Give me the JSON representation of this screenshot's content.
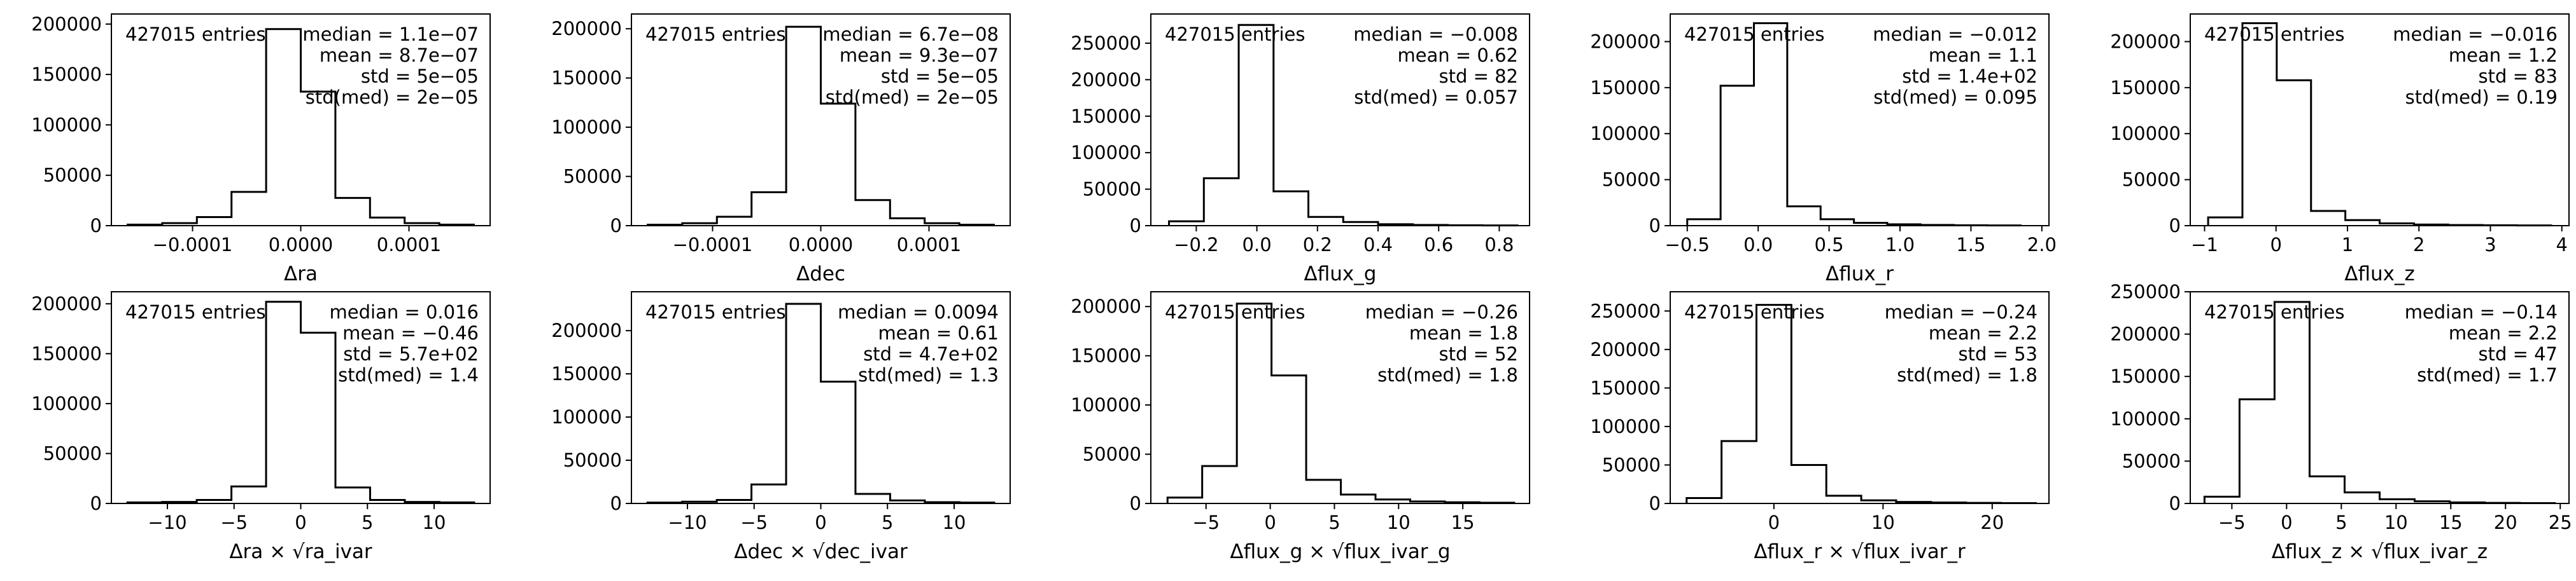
{
  "chart_data": [
    {
      "type": "histogram",
      "xlabel": "Δra",
      "entries_label": "427015 entries",
      "stats": [
        "median = 1.1e−07",
        "mean = 8.7e−07",
        "std = 5e−05",
        "std(med) = 2e−05"
      ],
      "xlim": [
        -0.000175,
        0.000175
      ],
      "ylim": [
        0,
        210000
      ],
      "xticks": [
        {
          "v": -0.0001,
          "label": "−0.0001"
        },
        {
          "v": 0.0,
          "label": "0.0000"
        },
        {
          "v": 0.0001,
          "label": "0.0001"
        }
      ],
      "yticks": [
        {
          "v": 0,
          "label": "0"
        },
        {
          "v": 50000,
          "label": "50000"
        },
        {
          "v": 100000,
          "label": "100000"
        },
        {
          "v": 150000,
          "label": "150000"
        },
        {
          "v": 200000,
          "label": "200000"
        }
      ],
      "bin_edges": [
        -0.00016,
        -0.000128,
        -9.6e-05,
        -6.4e-05,
        -3.2e-05,
        0.0,
        3.2e-05,
        6.4e-05,
        9.6e-05,
        0.000128,
        0.00016
      ],
      "counts": [
        1000,
        2500,
        8500,
        33500,
        195000,
        133000,
        27500,
        8000,
        2500,
        1000
      ]
    },
    {
      "type": "histogram",
      "xlabel": "Δdec",
      "entries_label": "427015 entries",
      "stats": [
        "median = 6.7e−08",
        "mean = 9.3e−07",
        "std = 5e−05",
        "std(med) = 2e−05"
      ],
      "xlim": [
        -0.000175,
        0.000175
      ],
      "ylim": [
        0,
        215000
      ],
      "xticks": [
        {
          "v": -0.0001,
          "label": "−0.0001"
        },
        {
          "v": 0.0,
          "label": "0.0000"
        },
        {
          "v": 0.0001,
          "label": "0.0001"
        }
      ],
      "yticks": [
        {
          "v": 0,
          "label": "0"
        },
        {
          "v": 50000,
          "label": "50000"
        },
        {
          "v": 100000,
          "label": "100000"
        },
        {
          "v": 150000,
          "label": "150000"
        },
        {
          "v": 200000,
          "label": "200000"
        }
      ],
      "bin_edges": [
        -0.00016,
        -0.000128,
        -9.6e-05,
        -6.4e-05,
        -3.2e-05,
        0.0,
        3.2e-05,
        6.4e-05,
        9.6e-05,
        0.000128,
        0.00016
      ],
      "counts": [
        1000,
        2500,
        9000,
        34000,
        202000,
        124000,
        26000,
        7500,
        2500,
        1000
      ]
    },
    {
      "type": "histogram",
      "xlabel": "Δflux_g",
      "entries_label": "427015 entries",
      "stats": [
        "median = −0.008",
        "mean = 0.62",
        "std = 82",
        "std(med) = 0.057"
      ],
      "xlim": [
        -0.35,
        0.9
      ],
      "ylim": [
        0,
        290000
      ],
      "xticks": [
        {
          "v": -0.2,
          "label": "−0.2"
        },
        {
          "v": 0.0,
          "label": "0.0"
        },
        {
          "v": 0.2,
          "label": "0.2"
        },
        {
          "v": 0.4,
          "label": "0.4"
        },
        {
          "v": 0.6,
          "label": "0.6"
        },
        {
          "v": 0.8,
          "label": "0.8"
        }
      ],
      "yticks": [
        {
          "v": 0,
          "label": "0"
        },
        {
          "v": 50000,
          "label": "50000"
        },
        {
          "v": 100000,
          "label": "100000"
        },
        {
          "v": 150000,
          "label": "150000"
        },
        {
          "v": 200000,
          "label": "200000"
        },
        {
          "v": 250000,
          "label": "250000"
        }
      ],
      "bin_edges": [
        -0.29,
        -0.175,
        -0.06,
        0.055,
        0.17,
        0.285,
        0.4,
        0.515,
        0.63,
        0.745,
        0.86
      ],
      "counts": [
        6000,
        65000,
        275000,
        47000,
        12000,
        5000,
        2000,
        1000,
        500,
        300
      ]
    },
    {
      "type": "histogram",
      "xlabel": "Δflux_r",
      "entries_label": "427015 entries",
      "stats": [
        "median = −0.012",
        "mean = 1.1",
        "std = 1.4e+02",
        "std(med) = 0.095"
      ],
      "xlim": [
        -0.62,
        2.05
      ],
      "ylim": [
        0,
        230000
      ],
      "xticks": [
        {
          "v": -0.5,
          "label": "−0.5"
        },
        {
          "v": 0.0,
          "label": "0.0"
        },
        {
          "v": 0.5,
          "label": "0.5"
        },
        {
          "v": 1.0,
          "label": "1.0"
        },
        {
          "v": 1.5,
          "label": "1.5"
        },
        {
          "v": 2.0,
          "label": "2.0"
        }
      ],
      "yticks": [
        {
          "v": 0,
          "label": "0"
        },
        {
          "v": 50000,
          "label": "50000"
        },
        {
          "v": 100000,
          "label": "100000"
        },
        {
          "v": 150000,
          "label": "150000"
        },
        {
          "v": 200000,
          "label": "200000"
        }
      ],
      "bin_edges": [
        -0.5,
        -0.265,
        -0.03,
        0.205,
        0.44,
        0.675,
        0.91,
        1.145,
        1.38,
        1.615,
        1.85
      ],
      "counts": [
        7000,
        152000,
        220000,
        21000,
        7000,
        3000,
        1500,
        800,
        400,
        300
      ]
    },
    {
      "type": "histogram",
      "xlabel": "Δflux_z",
      "entries_label": "427015 entries",
      "stats": [
        "median = −0.016",
        "mean = 1.2",
        "std = 83",
        "std(med) = 0.19"
      ],
      "xlim": [
        -1.2,
        4.1
      ],
      "ylim": [
        0,
        230000
      ],
      "xticks": [
        {
          "v": -1,
          "label": "−1"
        },
        {
          "v": 0,
          "label": "0"
        },
        {
          "v": 1,
          "label": "1"
        },
        {
          "v": 2,
          "label": "2"
        },
        {
          "v": 3,
          "label": "3"
        },
        {
          "v": 4,
          "label": "4"
        }
      ],
      "yticks": [
        {
          "v": 0,
          "label": "0"
        },
        {
          "v": 50000,
          "label": "50000"
        },
        {
          "v": 100000,
          "label": "100000"
        },
        {
          "v": 150000,
          "label": "150000"
        },
        {
          "v": 200000,
          "label": "200000"
        }
      ],
      "bin_edges": [
        -0.95,
        -0.47,
        0.01,
        0.49,
        0.97,
        1.45,
        1.93,
        2.41,
        2.89,
        3.37,
        3.85
      ],
      "counts": [
        9000,
        220000,
        158000,
        16000,
        6000,
        2500,
        1200,
        700,
        400,
        300
      ]
    },
    {
      "type": "histogram",
      "xlabel": "Δra × √ra_ivar",
      "entries_label": "427015 entries",
      "stats": [
        "median = 0.016",
        "mean = −0.46",
        "std = 5.7e+02",
        "std(med) = 1.4"
      ],
      "xlim": [
        -14.2,
        14.2
      ],
      "ylim": [
        0,
        212000
      ],
      "xticks": [
        {
          "v": -10,
          "label": "−10"
        },
        {
          "v": -5,
          "label": "−5"
        },
        {
          "v": 0,
          "label": "0"
        },
        {
          "v": 5,
          "label": "5"
        },
        {
          "v": 10,
          "label": "10"
        }
      ],
      "yticks": [
        {
          "v": 0,
          "label": "0"
        },
        {
          "v": 50000,
          "label": "50000"
        },
        {
          "v": 100000,
          "label": "100000"
        },
        {
          "v": 150000,
          "label": "150000"
        },
        {
          "v": 200000,
          "label": "200000"
        }
      ],
      "bin_edges": [
        -13,
        -10.4,
        -7.8,
        -5.2,
        -2.6,
        0,
        2.6,
        5.2,
        7.8,
        10.4,
        13
      ],
      "counts": [
        1000,
        1500,
        3500,
        17000,
        202000,
        171000,
        16000,
        3500,
        1500,
        1000
      ]
    },
    {
      "type": "histogram",
      "xlabel": "Δdec × √dec_ivar",
      "entries_label": "427015 entries",
      "stats": [
        "median = 0.0094",
        "mean = 0.61",
        "std = 4.7e+02",
        "std(med) = 1.3"
      ],
      "xlim": [
        -14.2,
        14.2
      ],
      "ylim": [
        0,
        245000
      ],
      "xticks": [
        {
          "v": -10,
          "label": "−10"
        },
        {
          "v": -5,
          "label": "−5"
        },
        {
          "v": 0,
          "label": "0"
        },
        {
          "v": 5,
          "label": "5"
        },
        {
          "v": 10,
          "label": "10"
        }
      ],
      "yticks": [
        {
          "v": 0,
          "label": "0"
        },
        {
          "v": 50000,
          "label": "50000"
        },
        {
          "v": 100000,
          "label": "100000"
        },
        {
          "v": 150000,
          "label": "150000"
        },
        {
          "v": 200000,
          "label": "200000"
        }
      ],
      "bin_edges": [
        -13,
        -10.4,
        -7.8,
        -5.2,
        -2.6,
        0,
        2.6,
        5.2,
        7.8,
        10.4,
        13
      ],
      "counts": [
        1000,
        2000,
        4000,
        22000,
        231000,
        141000,
        11000,
        3500,
        1500,
        1000
      ]
    },
    {
      "type": "histogram",
      "xlabel": "Δflux_g × √flux_ivar_g",
      "entries_label": "427015 entries",
      "stats": [
        "median = −0.26",
        "mean = 1.8",
        "std = 52",
        "std(med) = 1.8"
      ],
      "xlim": [
        -9.3,
        20.2
      ],
      "ylim": [
        0,
        215000
      ],
      "xticks": [
        {
          "v": -5,
          "label": "−5"
        },
        {
          "v": 0,
          "label": "0"
        },
        {
          "v": 5,
          "label": "5"
        },
        {
          "v": 10,
          "label": "10"
        },
        {
          "v": 15,
          "label": "15"
        }
      ],
      "yticks": [
        {
          "v": 0,
          "label": "0"
        },
        {
          "v": 50000,
          "label": "50000"
        },
        {
          "v": 100000,
          "label": "100000"
        },
        {
          "v": 150000,
          "label": "150000"
        },
        {
          "v": 200000,
          "label": "200000"
        }
      ],
      "bin_edges": [
        -8,
        -5.3,
        -2.6,
        0.1,
        2.8,
        5.5,
        8.2,
        10.9,
        13.6,
        16.3,
        19
      ],
      "counts": [
        6000,
        38000,
        203000,
        130000,
        24000,
        9000,
        4000,
        2000,
        1200,
        700
      ]
    },
    {
      "type": "histogram",
      "xlabel": "Δflux_r × √flux_ivar_r",
      "entries_label": "427015 entries",
      "stats": [
        "median = −0.24",
        "mean = 2.2",
        "std = 53",
        "std(med) = 1.8"
      ],
      "xlim": [
        -9.5,
        25.2
      ],
      "ylim": [
        0,
        275000
      ],
      "xticks": [
        {
          "v": 0,
          "label": "0"
        },
        {
          "v": 10,
          "label": "10"
        },
        {
          "v": 20,
          "label": "20"
        }
      ],
      "yticks": [
        {
          "v": 0,
          "label": "0"
        },
        {
          "v": 50000,
          "label": "50000"
        },
        {
          "v": 100000,
          "label": "100000"
        },
        {
          "v": 150000,
          "label": "150000"
        },
        {
          "v": 200000,
          "label": "200000"
        },
        {
          "v": 250000,
          "label": "250000"
        }
      ],
      "bin_edges": [
        -8,
        -4.8,
        -1.6,
        1.6,
        4.8,
        8.0,
        11.2,
        14.4,
        17.6,
        20.8,
        24
      ],
      "counts": [
        7000,
        81000,
        258000,
        50000,
        10000,
        4000,
        2000,
        1200,
        700,
        400
      ]
    },
    {
      "type": "histogram",
      "xlabel": "Δflux_z × √flux_ivar_z",
      "entries_label": "427015 entries",
      "stats": [
        "median = −0.14",
        "mean = 2.2",
        "std = 47",
        "std(med) = 1.7"
      ],
      "xlim": [
        -8.8,
        25.8
      ],
      "ylim": [
        0,
        250000
      ],
      "xticks": [
        {
          "v": -5,
          "label": "−5"
        },
        {
          "v": 0,
          "label": "0"
        },
        {
          "v": 5,
          "label": "5"
        },
        {
          "v": 10,
          "label": "10"
        },
        {
          "v": 15,
          "label": "15"
        },
        {
          "v": 20,
          "label": "20"
        },
        {
          "v": 25,
          "label": "25"
        }
      ],
      "yticks": [
        {
          "v": 0,
          "label": "0"
        },
        {
          "v": 50000,
          "label": "50000"
        },
        {
          "v": 100000,
          "label": "100000"
        },
        {
          "v": 150000,
          "label": "150000"
        },
        {
          "v": 200000,
          "label": "200000"
        },
        {
          "v": 250000,
          "label": "250000"
        }
      ],
      "bin_edges": [
        -7.5,
        -4.3,
        -1.1,
        2.1,
        5.3,
        8.5,
        11.7,
        14.9,
        18.1,
        21.3,
        24.5
      ],
      "counts": [
        8000,
        123000,
        238000,
        32000,
        13000,
        5000,
        2500,
        1200,
        700,
        400
      ]
    }
  ]
}
